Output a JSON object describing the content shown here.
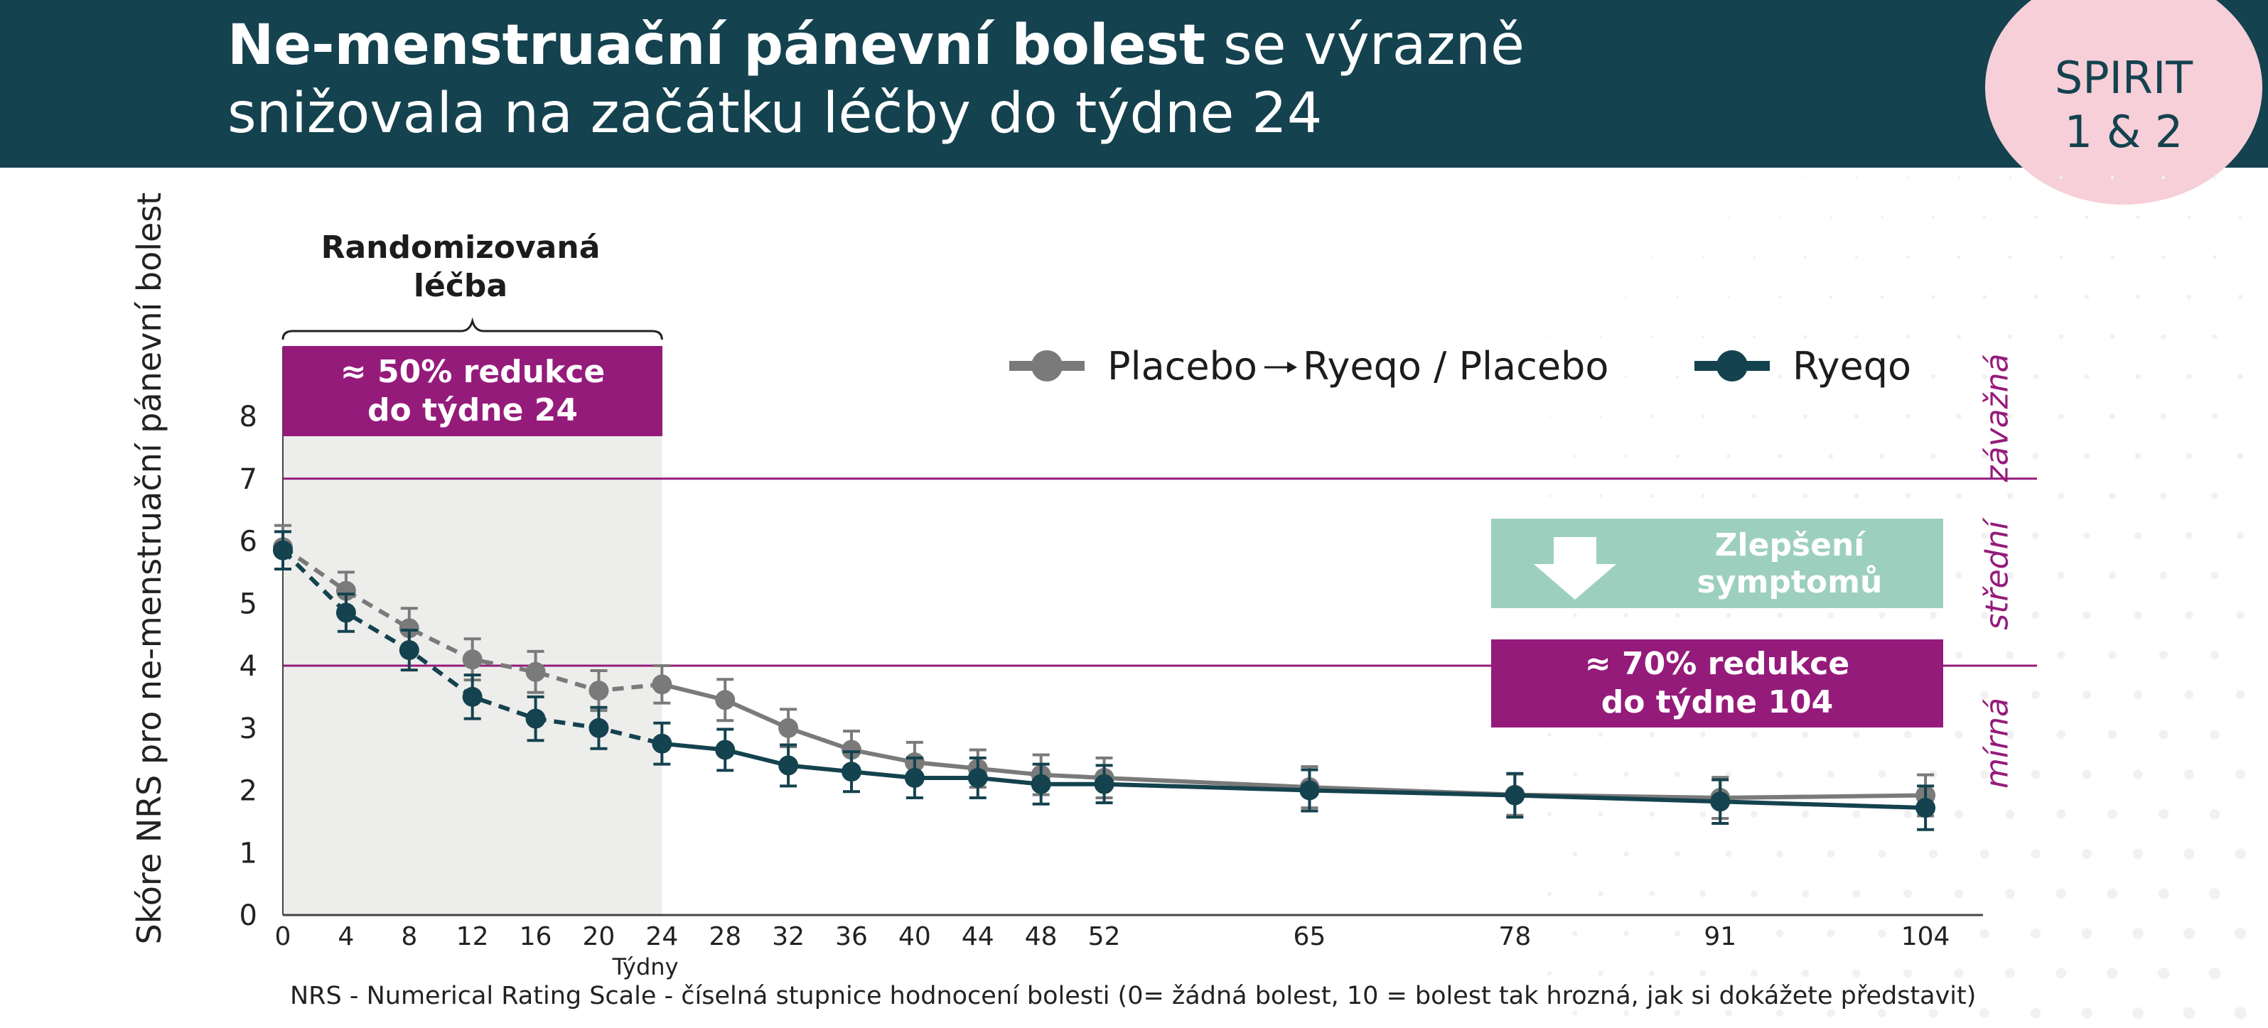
{
  "header": {
    "title_bold": "Ne-menstruační pánevní bolest",
    "title_rest_line1": " se výrazně",
    "title_line2": "snižovala na začátku léčby do týdne 24",
    "badge_line1": "SPIRIT",
    "badge_line2": "1 & 2"
  },
  "annotations": {
    "randomized_line1": "Randomizovaná",
    "randomized_line2": "léčba",
    "reduction50_line1": "≈ 50% redukce",
    "reduction50_line2": "do týdne 24",
    "improvement_line1": "Zlepšení",
    "improvement_line2": "symptomů",
    "reduction70_line1": "≈ 70% redukce",
    "reduction70_line2": "do týdne 104"
  },
  "severity_labels": {
    "severe": "závažná",
    "moderate": "střední",
    "mild": "mírná"
  },
  "legend": {
    "placebo_part1": "Placebo",
    "placebo_part2": "Ryeqo / Placebo",
    "ryeqo": "Ryeqo"
  },
  "colors": {
    "header_bg": "#14424f",
    "badge_bg": "#f7cfd8",
    "accent_purple": "#951b7b",
    "improvement_green": "#9dcfbf",
    "placebo_gray": "#7a7a7a",
    "ryeqo_teal": "#14424f",
    "randomized_shade": "#ededeb"
  },
  "chart_data": {
    "type": "line",
    "ylabel": "Skóre NRS pro ne-menstruační pánevní bolest",
    "xlabel": "Týdny",
    "x": [
      0,
      4,
      8,
      12,
      16,
      20,
      24,
      28,
      32,
      36,
      40,
      44,
      48,
      52,
      65,
      78,
      91,
      104
    ],
    "x_ticks": [
      0,
      4,
      8,
      12,
      16,
      20,
      24,
      28,
      32,
      36,
      40,
      44,
      48,
      52,
      65,
      78,
      91,
      104
    ],
    "y_ticks": [
      0,
      1,
      2,
      3,
      4,
      5,
      6,
      7,
      8
    ],
    "ylim": [
      0,
      8
    ],
    "xlim": [
      0,
      108
    ],
    "randomized_period_weeks": [
      0,
      24
    ],
    "threshold_lines": [
      7,
      4
    ],
    "series": [
      {
        "name": "Placebo → Ryeqo / Placebo",
        "color": "#7a7a7a",
        "values": [
          5.9,
          5.2,
          4.6,
          4.1,
          3.9,
          3.6,
          3.7,
          3.45,
          3.0,
          2.65,
          2.45,
          2.35,
          2.25,
          2.2,
          2.05,
          1.93,
          1.88,
          1.92
        ],
        "error": [
          0.35,
          0.3,
          0.32,
          0.33,
          0.33,
          0.32,
          0.3,
          0.33,
          0.3,
          0.3,
          0.32,
          0.3,
          0.32,
          0.32,
          0.33,
          0.33,
          0.33,
          0.33
        ],
        "dashed_until_week": 24
      },
      {
        "name": "Ryeqo",
        "color": "#14424f",
        "values": [
          5.85,
          4.85,
          4.25,
          3.5,
          3.15,
          3.0,
          2.75,
          2.65,
          2.4,
          2.3,
          2.2,
          2.2,
          2.1,
          2.1,
          2.0,
          1.92,
          1.82,
          1.72
        ],
        "error": [
          0.3,
          0.3,
          0.32,
          0.35,
          0.35,
          0.33,
          0.33,
          0.33,
          0.33,
          0.32,
          0.32,
          0.32,
          0.32,
          0.3,
          0.33,
          0.35,
          0.35,
          0.35
        ],
        "dashed_until_week": 24
      }
    ]
  },
  "footnote": "NRS - Numerical Rating Scale - číselná stupnice hodnocení bolesti (0= žádná bolest, 10 = bolest tak hrozná, jak si dokážete představit)"
}
